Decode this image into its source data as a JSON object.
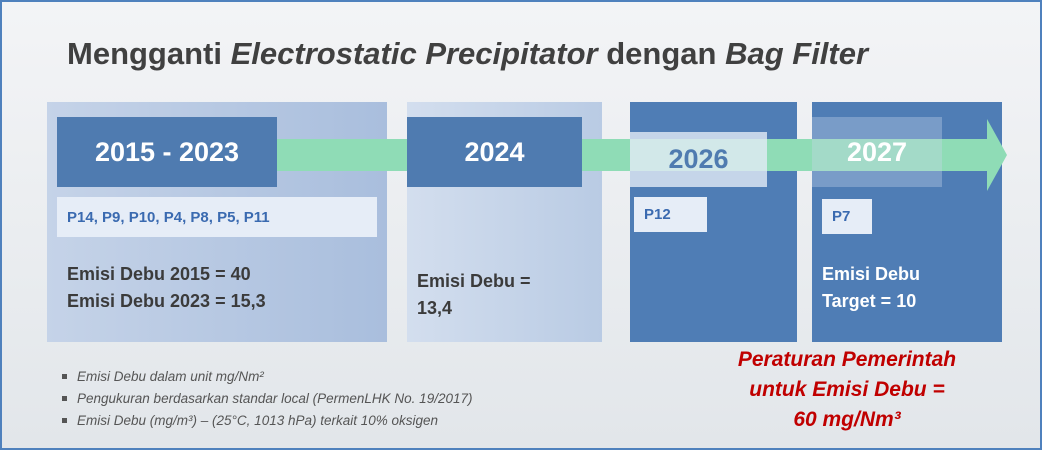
{
  "title": {
    "parts": [
      "Mengganti",
      "Electrostatic Precipitator",
      "dengan",
      "Bag Filter"
    ]
  },
  "stages": [
    {
      "year": "2015 - 2023",
      "plants": "P14, P9, P10, P4, P8, P5, P11",
      "emission": [
        "Emisi Debu 2015 = 40",
        "Emisi Debu 2023 = 15,3"
      ]
    },
    {
      "year": "2024",
      "emission": [
        "Emisi Debu =",
        "13,4"
      ]
    },
    {
      "year": "2026",
      "plants": "P12"
    },
    {
      "year": "2027",
      "plants": "P7",
      "emission": [
        "Emisi Debu",
        "Target = 10"
      ]
    }
  ],
  "notes": [
    "Emisi Debu dalam unit mg/Nm²",
    "Pengukuran berdasarkan standar local (PermenLHK No. 19/2017)",
    "Emisi Debu (mg/m³) – (25°C, 1013 hPa) terkait 10% oksigen"
  ],
  "regulation": [
    "Peraturan Pemerintah",
    "untuk Emisi Debu =",
    "60 mg/Nm³"
  ]
}
